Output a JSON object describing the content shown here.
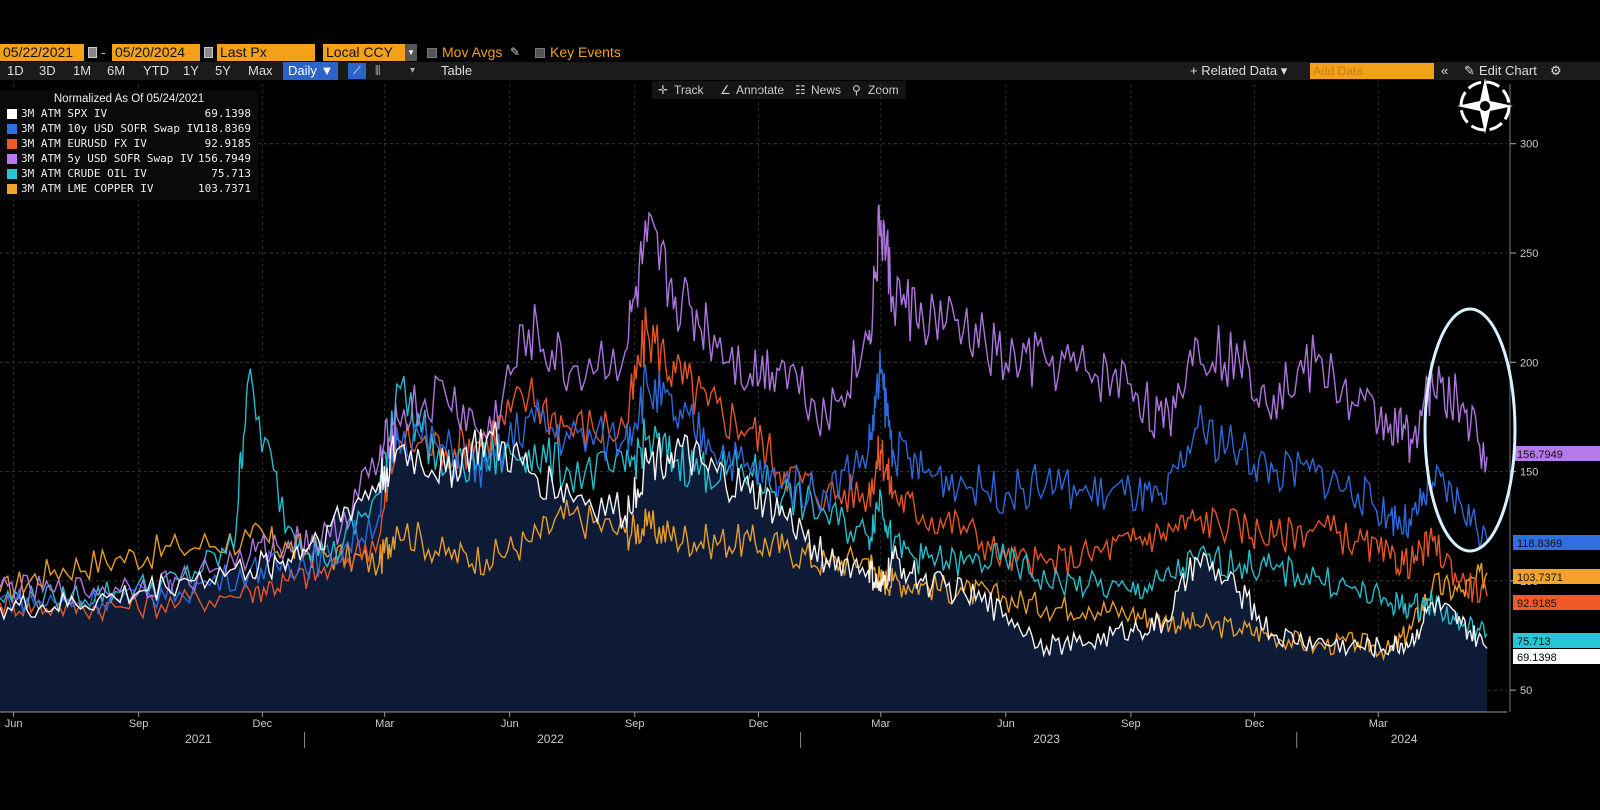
{
  "toolbar": {
    "start_date": "05/22/2021",
    "date_sep": "-",
    "end_date": "05/20/2024",
    "price_field": "Last Px",
    "currency": "Local CCY",
    "mov_avgs_label": "Mov Avgs",
    "key_events_label": "Key Events",
    "ranges": [
      "1D",
      "3D",
      "1M",
      "6M",
      "YTD",
      "1Y",
      "5Y",
      "Max"
    ],
    "frequency": "Daily ▼",
    "table_label": "Table",
    "related_data_label": "+ Related Data ▾",
    "add_data_placeholder": "Add Data",
    "edit_chart_label": "Edit Chart",
    "tools": [
      "Track",
      "Annotate",
      "News",
      "Zoom"
    ]
  },
  "colors": {
    "spx": "#ffffff",
    "sofr10": "#2f6fe4",
    "eurusd": "#f05a28",
    "sofr5": "#b57bea",
    "crude": "#27c6d6",
    "copper": "#f2a42a",
    "area": "#0d1b36",
    "highlight_ring": "#d8f0ff"
  },
  "chart_data": {
    "type": "line",
    "title": "",
    "normalized_label": "Normalized As Of 05/24/2021",
    "x_range": [
      "2021-05-22",
      "2024-05-20"
    ],
    "ylim": [
      40,
      320
    ],
    "y_ticks": [
      50,
      100,
      150,
      200,
      250,
      300
    ],
    "x_ticks": [
      {
        "date": "2021-06-01",
        "label": "Jun"
      },
      {
        "date": "2021-09-01",
        "label": "Sep"
      },
      {
        "date": "2021-12-01",
        "label": "Dec"
      },
      {
        "date": "2022-03-01",
        "label": "Mar"
      },
      {
        "date": "2022-06-01",
        "label": "Jun"
      },
      {
        "date": "2022-09-01",
        "label": "Sep"
      },
      {
        "date": "2022-12-01",
        "label": "Dec"
      },
      {
        "date": "2023-03-01",
        "label": "Mar"
      },
      {
        "date": "2023-06-01",
        "label": "Jun"
      },
      {
        "date": "2023-09-01",
        "label": "Sep"
      },
      {
        "date": "2023-12-01",
        "label": "Dec"
      },
      {
        "date": "2024-03-01",
        "label": "Mar"
      }
    ],
    "year_labels": [
      {
        "date": "2021-10-15",
        "label": "2021"
      },
      {
        "date": "2022-07-01",
        "label": "2022"
      },
      {
        "date": "2023-07-01",
        "label": "2023"
      },
      {
        "date": "2024-03-20",
        "label": "2024"
      }
    ],
    "year_dividers": [
      "2022-01-01",
      "2023-01-01",
      "2024-01-01"
    ],
    "grid": true,
    "legend_position": "top-left",
    "series": [
      {
        "key": "sofr5",
        "name": "3M ATM 5y USD SOFR Swap IV",
        "last": "156.7949",
        "x": [
          "2021-05-22",
          "2021-07-01",
          "2021-08-15",
          "2021-10-01",
          "2021-11-22",
          "2021-12-20",
          "2022-01-20",
          "2022-02-25",
          "2022-03-10",
          "2022-04-15",
          "2022-05-15",
          "2022-06-15",
          "2022-07-15",
          "2022-08-25",
          "2022-09-10",
          "2022-10-01",
          "2022-10-25",
          "2022-11-25",
          "2022-12-20",
          "2023-01-20",
          "2023-02-20",
          "2023-03-01",
          "2023-03-10",
          "2023-04-01",
          "2023-05-01",
          "2023-06-01",
          "2023-07-01",
          "2023-08-01",
          "2023-09-01",
          "2023-09-25",
          "2023-10-20",
          "2023-11-20",
          "2023-12-15",
          "2024-01-15",
          "2024-02-15",
          "2024-03-10",
          "2024-03-25",
          "2024-04-10",
          "2024-05-01",
          "2024-05-20"
        ],
        "y": [
          97,
          95,
          97,
          100,
          112,
          118,
          120,
          155,
          175,
          185,
          165,
          215,
          195,
          205,
          255,
          230,
          215,
          195,
          200,
          175,
          210,
          265,
          230,
          220,
          215,
          200,
          200,
          195,
          190,
          170,
          210,
          200,
          185,
          200,
          180,
          172,
          165,
          190,
          180,
          156.8
        ]
      },
      {
        "key": "sofr10",
        "name": "3M ATM 10y USD SOFR Swap IV",
        "last": "118.8369",
        "x": [
          "2021-05-22",
          "2021-07-01",
          "2021-08-15",
          "2021-10-01",
          "2021-11-22",
          "2021-12-20",
          "2022-01-20",
          "2022-02-25",
          "2022-03-10",
          "2022-04-15",
          "2022-05-15",
          "2022-06-15",
          "2022-07-15",
          "2022-08-25",
          "2022-09-10",
          "2022-10-01",
          "2022-10-25",
          "2022-11-25",
          "2022-12-20",
          "2023-01-20",
          "2023-02-20",
          "2023-03-01",
          "2023-03-10",
          "2023-04-01",
          "2023-05-01",
          "2023-06-01",
          "2023-07-01",
          "2023-08-01",
          "2023-09-01",
          "2023-09-25",
          "2023-10-20",
          "2023-11-20",
          "2023-12-15",
          "2024-01-15",
          "2024-02-15",
          "2024-03-10",
          "2024-03-25",
          "2024-04-10",
          "2024-05-01",
          "2024-05-20"
        ],
        "y": [
          92,
          90,
          92,
          95,
          105,
          108,
          110,
          130,
          170,
          160,
          150,
          175,
          165,
          165,
          190,
          175,
          165,
          150,
          145,
          140,
          160,
          195,
          160,
          150,
          145,
          140,
          145,
          140,
          140,
          135,
          170,
          160,
          150,
          150,
          140,
          130,
          125,
          145,
          135,
          118.8
        ]
      },
      {
        "key": "eurusd",
        "name": "3M ATM EURUSD FX IV",
        "last": "92.9185",
        "x": [
          "2021-05-22",
          "2021-07-01",
          "2021-08-15",
          "2021-10-01",
          "2021-11-22",
          "2021-12-20",
          "2022-01-20",
          "2022-02-25",
          "2022-03-10",
          "2022-04-15",
          "2022-05-15",
          "2022-06-15",
          "2022-07-15",
          "2022-08-25",
          "2022-09-10",
          "2022-10-01",
          "2022-10-25",
          "2022-11-25",
          "2022-12-20",
          "2023-01-20",
          "2023-02-20",
          "2023-03-01",
          "2023-03-10",
          "2023-04-01",
          "2023-05-01",
          "2023-06-01",
          "2023-07-01",
          "2023-08-01",
          "2023-09-01",
          "2023-09-25",
          "2023-10-20",
          "2023-11-20",
          "2023-12-15",
          "2024-01-15",
          "2024-02-15",
          "2024-03-10",
          "2024-03-25",
          "2024-04-10",
          "2024-05-01",
          "2024-05-20"
        ],
        "y": [
          90,
          88,
          88,
          90,
          95,
          100,
          105,
          120,
          165,
          160,
          165,
          185,
          170,
          170,
          215,
          195,
          180,
          170,
          150,
          140,
          140,
          160,
          140,
          130,
          125,
          110,
          108,
          112,
          118,
          122,
          128,
          125,
          120,
          125,
          118,
          110,
          108,
          118,
          100,
          92.9
        ]
      },
      {
        "key": "copper",
        "name": "3M ATM LME COPPER IV",
        "last": "103.7371",
        "x": [
          "2021-05-22",
          "2021-07-01",
          "2021-08-15",
          "2021-10-01",
          "2021-11-22",
          "2021-12-20",
          "2022-01-20",
          "2022-02-25",
          "2022-03-10",
          "2022-04-15",
          "2022-05-15",
          "2022-06-15",
          "2022-07-15",
          "2022-08-25",
          "2022-09-10",
          "2022-10-01",
          "2022-10-25",
          "2022-11-25",
          "2022-12-20",
          "2023-01-20",
          "2023-02-20",
          "2023-03-01",
          "2023-03-10",
          "2023-04-01",
          "2023-05-01",
          "2023-06-01",
          "2023-07-01",
          "2023-08-01",
          "2023-09-01",
          "2023-09-25",
          "2023-10-20",
          "2023-11-20",
          "2023-12-15",
          "2024-01-15",
          "2024-02-15",
          "2024-03-10",
          "2024-03-25",
          "2024-04-10",
          "2024-05-01",
          "2024-05-20"
        ],
        "y": [
          95,
          105,
          110,
          115,
          120,
          115,
          112,
          108,
          125,
          112,
          110,
          118,
          130,
          122,
          125,
          120,
          118,
          118,
          115,
          108,
          110,
          100,
          100,
          98,
          95,
          92,
          88,
          88,
          85,
          82,
          80,
          78,
          75,
          70,
          72,
          68,
          78,
          98,
          95,
          103.7
        ]
      },
      {
        "key": "crude",
        "name": "3M ATM CRUDE OIL IV",
        "last": "75.713",
        "x": [
          "2021-05-22",
          "2021-07-01",
          "2021-08-15",
          "2021-10-01",
          "2021-11-10",
          "2021-11-20",
          "2021-12-20",
          "2022-01-20",
          "2022-02-25",
          "2022-03-10",
          "2022-04-15",
          "2022-05-15",
          "2022-06-15",
          "2022-07-15",
          "2022-08-25",
          "2022-09-10",
          "2022-10-01",
          "2022-10-25",
          "2022-11-25",
          "2022-12-20",
          "2023-01-20",
          "2023-02-20",
          "2023-03-01",
          "2023-03-10",
          "2023-04-01",
          "2023-05-01",
          "2023-06-01",
          "2023-07-01",
          "2023-08-01",
          "2023-09-01",
          "2023-09-25",
          "2023-10-20",
          "2023-11-20",
          "2023-12-15",
          "2024-01-15",
          "2024-02-15",
          "2024-03-10",
          "2024-03-25",
          "2024-04-10",
          "2024-05-01",
          "2024-05-20"
        ],
        "y": [
          92,
          92,
          95,
          100,
          115,
          190,
          125,
          110,
          140,
          190,
          150,
          155,
          160,
          150,
          150,
          165,
          155,
          150,
          150,
          140,
          130,
          120,
          140,
          115,
          110,
          108,
          110,
          100,
          98,
          95,
          100,
          110,
          108,
          105,
          102,
          95,
          90,
          88,
          90,
          80,
          75.7
        ]
      },
      {
        "key": "spx",
        "name": "3M ATM SPX IV",
        "last": "69.1398",
        "x": [
          "2021-05-22",
          "2021-07-01",
          "2021-08-15",
          "2021-10-01",
          "2021-11-22",
          "2021-12-20",
          "2022-01-20",
          "2022-02-25",
          "2022-03-10",
          "2022-04-15",
          "2022-05-15",
          "2022-06-15",
          "2022-07-15",
          "2022-08-25",
          "2022-09-10",
          "2022-10-01",
          "2022-10-25",
          "2022-11-25",
          "2022-12-20",
          "2023-01-20",
          "2023-02-20",
          "2023-03-01",
          "2023-03-10",
          "2023-04-01",
          "2023-05-01",
          "2023-06-01",
          "2023-07-01",
          "2023-08-01",
          "2023-09-01",
          "2023-09-25",
          "2023-10-20",
          "2023-11-20",
          "2023-12-15",
          "2024-01-15",
          "2024-02-15",
          "2024-03-10",
          "2024-03-25",
          "2024-04-10",
          "2024-05-01",
          "2024-05-20"
        ],
        "y": [
          88,
          88,
          92,
          100,
          105,
          110,
          125,
          145,
          160,
          150,
          165,
          150,
          140,
          130,
          155,
          160,
          150,
          140,
          130,
          110,
          105,
          95,
          110,
          100,
          95,
          85,
          70,
          72,
          78,
          80,
          110,
          95,
          75,
          72,
          70,
          70,
          72,
          90,
          80,
          69.1
        ]
      }
    ]
  }
}
